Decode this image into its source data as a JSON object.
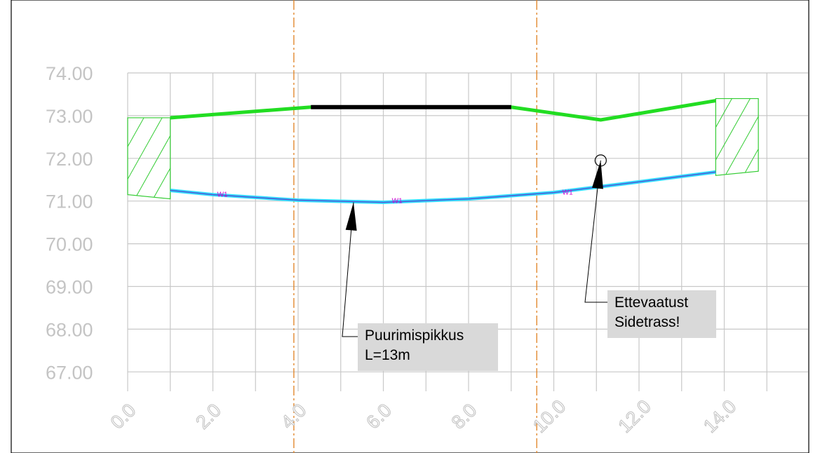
{
  "chart_data": {
    "type": "line",
    "title": "",
    "xlabel": "",
    "ylabel": "",
    "x_ticks": [
      "0.0",
      "2.0",
      "4.0",
      "6.0",
      "8.0",
      "10.0",
      "12.0",
      "14.0"
    ],
    "y_ticks": [
      "74.00",
      "73.00",
      "72.00",
      "71.00",
      "70.00",
      "69.00",
      "68.00",
      "67.00"
    ],
    "xlim": [
      0,
      14
    ],
    "ylim": [
      67,
      74
    ],
    "grid": true,
    "series": [
      {
        "name": "",
        "color": "#22dd22",
        "x": [
          1.0,
          4.3,
          9.0,
          11.1,
          13.8
        ],
        "y": [
          72.95,
          73.2,
          73.2,
          72.9,
          73.35
        ]
      },
      {
        "name": "",
        "color": "#000000",
        "x": [
          4.3,
          9.0
        ],
        "y": [
          73.2,
          73.2
        ]
      },
      {
        "name": "",
        "color": "#33ddff",
        "x": [
          1.0,
          2.0,
          4.0,
          6.0,
          8.0,
          10.0,
          12.0,
          13.8
        ],
        "y": [
          71.25,
          71.15,
          71.02,
          70.97,
          71.05,
          71.2,
          71.45,
          71.68
        ]
      }
    ],
    "pipe_tags": [
      {
        "text": "W1",
        "x": 2.1,
        "y": 71.1
      },
      {
        "text": "W1",
        "x": 6.2,
        "y": 70.95
      },
      {
        "text": "W1",
        "x": 10.2,
        "y": 71.15
      }
    ],
    "hatched_areas": [
      {
        "x": [
          0.0,
          1.0
        ],
        "y_top": 72.95,
        "y_bottom": 71.15
      },
      {
        "x": [
          13.8,
          14.8
        ],
        "y_top": 73.4,
        "y_bottom": 71.6
      }
    ],
    "vertical_markers": [
      3.9,
      9.6
    ],
    "marker_color": "#e08020",
    "annotations": [
      {
        "lines": [
          "Puurimispikkus",
          "L=13m"
        ],
        "x": 5.3,
        "y": 70.97
      },
      {
        "lines": [
          "Ettevaatust",
          "Sidetrass!"
        ],
        "x": 11.1,
        "y": 71.95
      }
    ],
    "circle_marker": {
      "x": 11.1,
      "y": 71.95
    }
  }
}
